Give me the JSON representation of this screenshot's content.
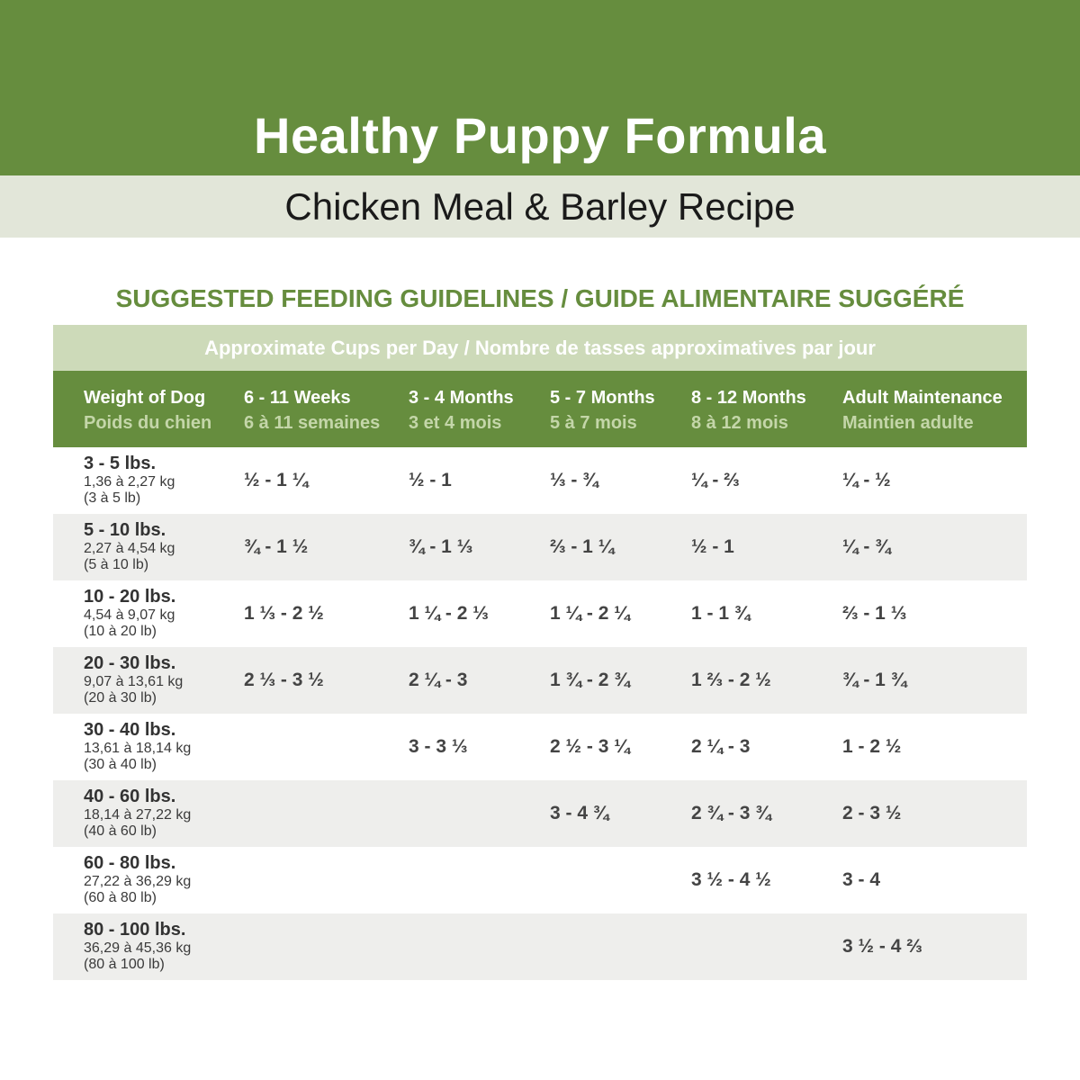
{
  "header": {
    "title": "Healthy Puppy Formula",
    "subtitle": "Chicken Meal & Barley Recipe"
  },
  "section_heading": "SUGGESTED FEEDING GUIDELINES / GUIDE ALIMENTAIRE SUGGÉRÉ",
  "table": {
    "cups_label": "Approximate Cups per Day / Nombre de tasses approximatives par jour",
    "columns": [
      {
        "en": "Weight of Dog",
        "fr": "Poids du chien"
      },
      {
        "en": "6 - 11 Weeks",
        "fr": "6 à 11 semaines"
      },
      {
        "en": "3 - 4 Months",
        "fr": "3 et 4 mois"
      },
      {
        "en": "5 - 7 Months",
        "fr": "5 à 7 mois"
      },
      {
        "en": "8 - 12 Months",
        "fr": "8 à 12 mois"
      },
      {
        "en": "Adult Maintenance",
        "fr": "Maintien adulte"
      }
    ],
    "rows": [
      {
        "lbs": "3 - 5 lbs.",
        "kg": "1,36  à 2,27 kg",
        "lb": "(3 à 5 lb)",
        "values": [
          "½ - 1 ¼",
          "½ - 1",
          "⅓ - ¾",
          "¼ - ⅔",
          "¼ - ½"
        ]
      },
      {
        "lbs": "5 - 10 lbs.",
        "kg": "2,27 à 4,54 kg",
        "lb": "(5 à 10 lb)",
        "values": [
          "¾ - 1 ½",
          "¾ - 1 ⅓",
          "⅔ - 1 ¼",
          "½ - 1",
          "¼ - ¾"
        ]
      },
      {
        "lbs": "10 - 20 lbs.",
        "kg": "4,54 à 9,07 kg",
        "lb": "(10 à 20 lb)",
        "values": [
          "1 ⅓ - 2 ½",
          "1 ¼ - 2 ⅓",
          "1 ¼ - 2 ¼",
          "1 - 1 ¾",
          "⅔ - 1 ⅓"
        ]
      },
      {
        "lbs": "20 - 30 lbs.",
        "kg": "9,07 à 13,61 kg",
        "lb": "(20 à 30 lb)",
        "values": [
          "2 ⅓ - 3 ½",
          "2 ¼ - 3",
          "1 ¾  - 2 ¾",
          "1 ⅔ - 2 ½",
          "¾ - 1 ¾"
        ]
      },
      {
        "lbs": "30 - 40 lbs.",
        "kg": "13,61 à 18,14 kg",
        "lb": "(30 à 40 lb)",
        "values": [
          "",
          "3 - 3 ⅓",
          "2 ½ - 3 ¼",
          "2 ¼ - 3",
          "1 - 2 ½"
        ]
      },
      {
        "lbs": "40 - 60 lbs.",
        "kg": "18,14 à 27,22 kg",
        "lb": "(40 à 60 lb)",
        "values": [
          "",
          "",
          "3 - 4 ¾",
          "2 ¾ - 3 ¾",
          "2 - 3 ½"
        ]
      },
      {
        "lbs": "60 - 80 lbs.",
        "kg": "27,22 à 36,29 kg",
        "lb": "(60 à 80 lb)",
        "values": [
          "",
          "",
          "",
          "3 ½ - 4 ½",
          "3 - 4"
        ]
      },
      {
        "lbs": "80 - 100 lbs.",
        "kg": "36,29 à 45,36 kg",
        "lb": "(80 à 100 lb)",
        "values": [
          "",
          "",
          "",
          "",
          "3 ½ - 4 ⅔"
        ]
      }
    ]
  },
  "colors": {
    "brand_green": "#668d3e",
    "light_green": "#cddab9",
    "sub_banner": "#e2e6d9",
    "row_alt": "#eeeeec"
  }
}
